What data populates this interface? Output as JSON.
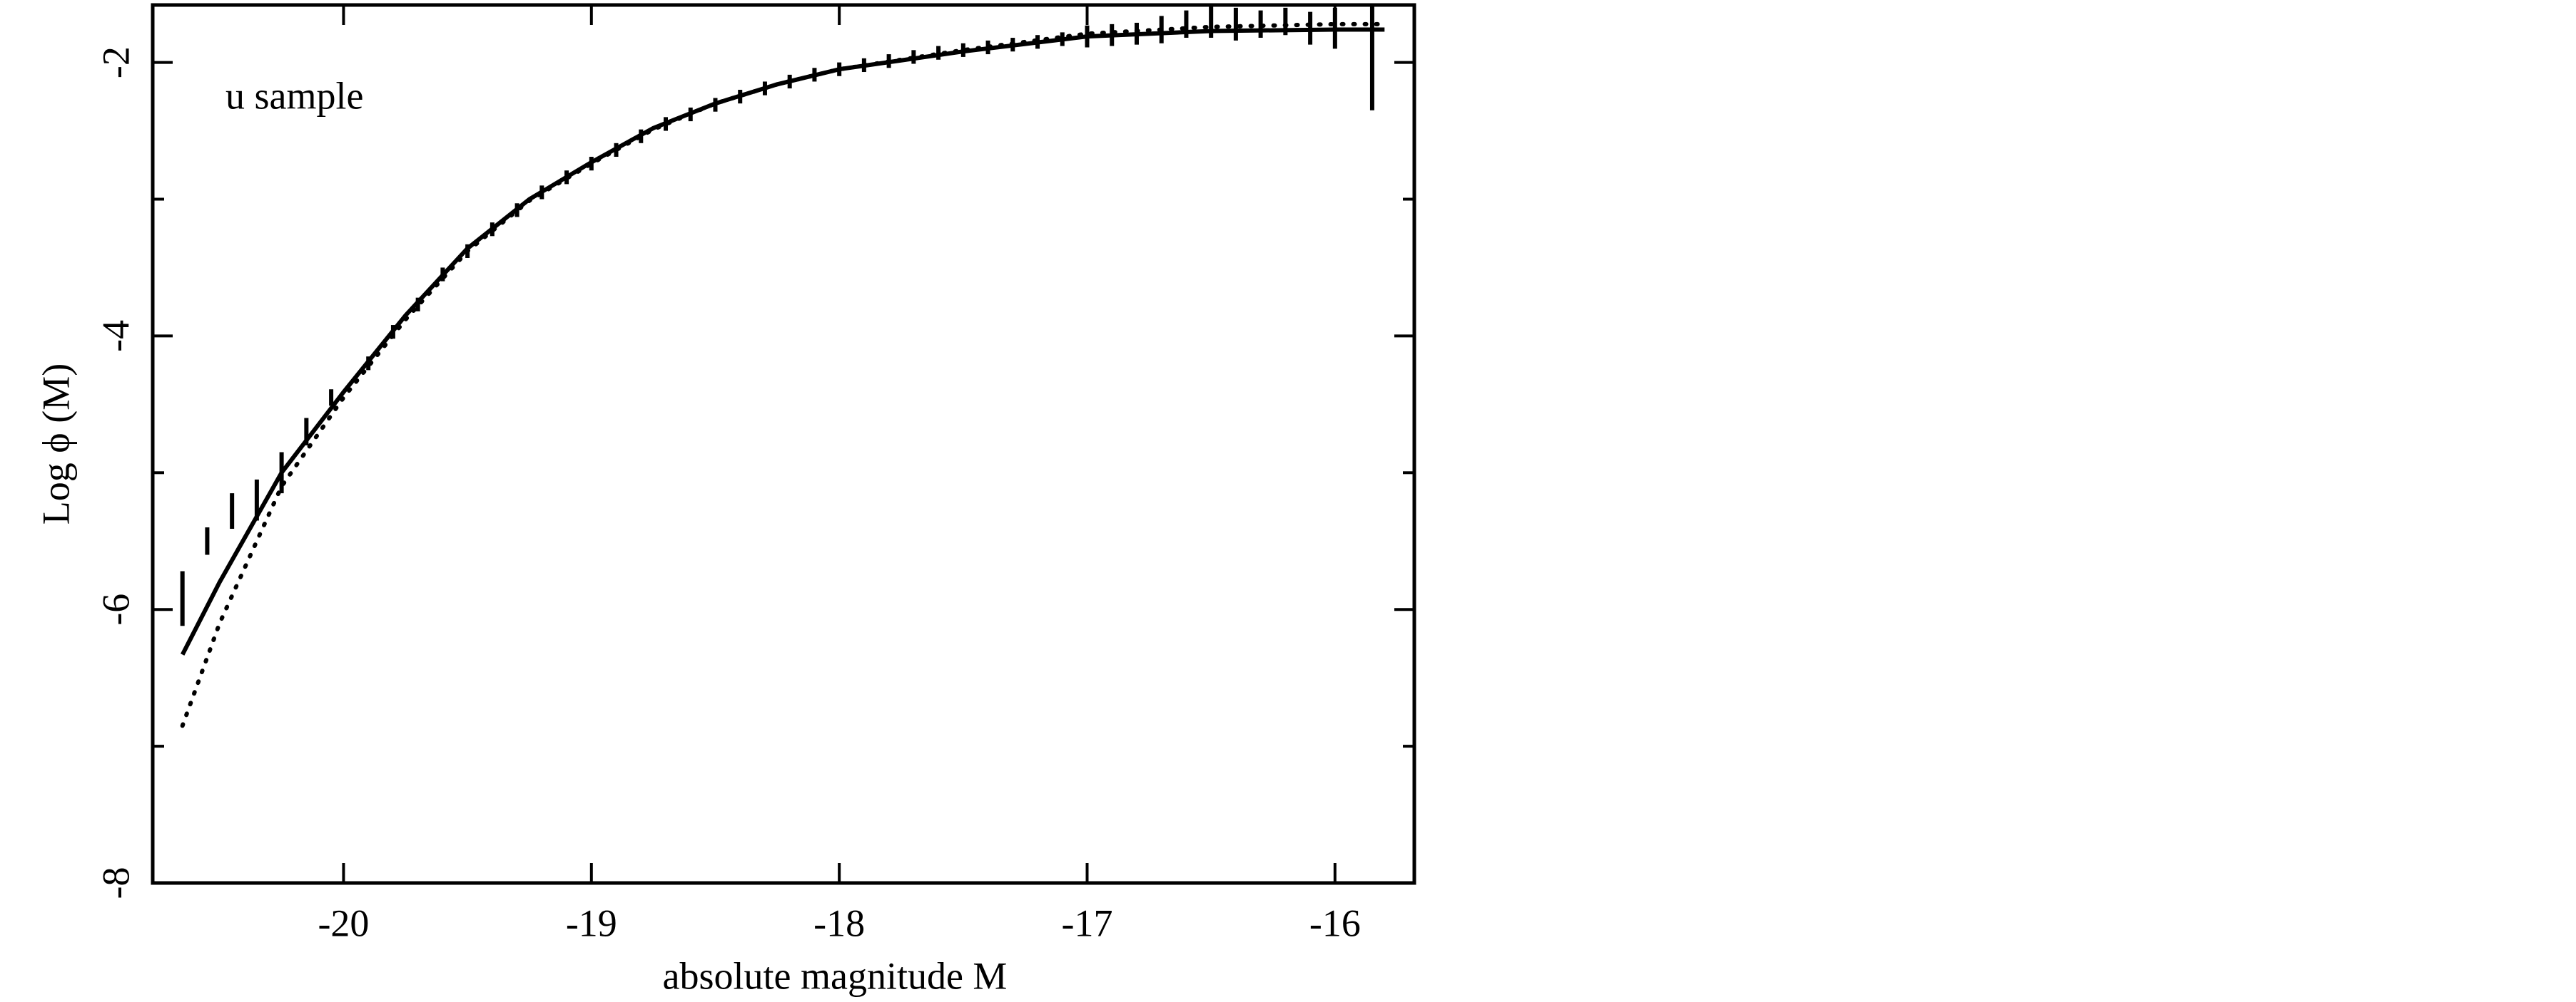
{
  "chart_data": {
    "type": "line",
    "annotation": "u sample",
    "xlabel": "absolute magnitude M",
    "ylabel": "Log ϕ (M)",
    "xlim": [
      -20.77,
      -15.68
    ],
    "ylim": [
      -8,
      -1.58
    ],
    "xticks": [
      -20,
      -19,
      -18,
      -17,
      -16
    ],
    "yticks": [
      -8,
      -6,
      -4,
      -2
    ],
    "yminorticks": [
      -7,
      -5,
      -3
    ],
    "color": "#000000",
    "series": [
      {
        "kind": "errorbar",
        "x": [
          -20.65,
          -20.55,
          -20.45,
          -20.35,
          -20.25,
          -20.15,
          -20.05,
          -19.9,
          -19.8,
          -19.7,
          -19.6,
          -19.5,
          -19.4,
          -19.3,
          -19.2,
          -19.1,
          -19.0,
          -18.9,
          -18.8,
          -18.7,
          -18.6,
          -18.5,
          -18.4,
          -18.3,
          -18.2,
          -18.1,
          -18.0,
          -17.9,
          -17.8,
          -17.7,
          -17.6,
          -17.5,
          -17.4,
          -17.3,
          -17.2,
          -17.1,
          -17.0,
          -16.9,
          -16.8,
          -16.7,
          -16.6,
          -16.5,
          -16.4,
          -16.3,
          -16.2,
          -16.1,
          -16.0,
          -15.85
        ],
        "values": [
          -5.92,
          -5.5,
          -5.28,
          -5.2,
          -5.0,
          -4.7,
          -4.45,
          -4.2,
          -3.97,
          -3.77,
          -3.55,
          -3.38,
          -3.22,
          -3.08,
          -2.95,
          -2.84,
          -2.74,
          -2.64,
          -2.54,
          -2.45,
          -2.38,
          -2.31,
          -2.25,
          -2.19,
          -2.14,
          -2.09,
          -2.05,
          -2.02,
          -1.99,
          -1.96,
          -1.93,
          -1.91,
          -1.89,
          -1.87,
          -1.85,
          -1.83,
          -1.81,
          -1.8,
          -1.79,
          -1.76,
          -1.72,
          -1.7,
          -1.72,
          -1.72,
          -1.7,
          -1.75,
          -1.75,
          -1.95
        ],
        "errors": [
          0.2,
          0.1,
          0.13,
          0.15,
          0.15,
          0.1,
          0.06,
          0.05,
          0.05,
          0.05,
          0.05,
          0.05,
          0.05,
          0.05,
          0.05,
          0.05,
          0.05,
          0.05,
          0.05,
          0.05,
          0.05,
          0.05,
          0.05,
          0.05,
          0.05,
          0.05,
          0.05,
          0.05,
          0.05,
          0.05,
          0.05,
          0.05,
          0.05,
          0.05,
          0.05,
          0.05,
          0.08,
          0.08,
          0.08,
          0.1,
          0.1,
          0.12,
          0.12,
          0.1,
          0.1,
          0.12,
          0.15,
          0.4
        ]
      },
      {
        "kind": "solid",
        "x": [
          -20.65,
          -20.5,
          -20.25,
          -20,
          -19.75,
          -19.5,
          -19.25,
          -19,
          -18.75,
          -18.5,
          -18.25,
          -18,
          -17.5,
          -17,
          -16.5,
          -16,
          -15.8
        ],
        "values": [
          -6.33,
          -5.8,
          -5.0,
          -4.41,
          -3.85,
          -3.36,
          -3.0,
          -2.73,
          -2.48,
          -2.3,
          -2.16,
          -2.05,
          -1.92,
          -1.81,
          -1.77,
          -1.76,
          -1.76
        ]
      },
      {
        "kind": "dotted",
        "x": [
          -20.65,
          -20.5,
          -20.25,
          -20,
          -19.75,
          -19.5,
          -19.25,
          -19,
          -18.75,
          -18.5,
          -18.25,
          -18,
          -17.5,
          -17,
          -16.5,
          -16,
          -15.8
        ],
        "values": [
          -6.85,
          -6.1,
          -5.1,
          -4.45,
          -3.88,
          -3.38,
          -3.01,
          -2.74,
          -2.49,
          -2.3,
          -2.16,
          -2.05,
          -1.91,
          -1.79,
          -1.74,
          -1.72,
          -1.72
        ]
      }
    ]
  }
}
